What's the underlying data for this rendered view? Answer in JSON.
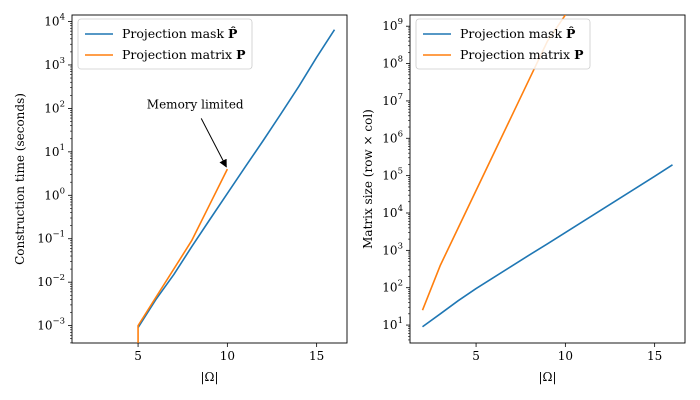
{
  "chart_data": [
    {
      "type": "line",
      "yscale": "log",
      "xlabel": "|Ω|",
      "ylabel": "Construction time (seconds)",
      "xlim": [
        1.3,
        16.7
      ],
      "ylim_log10": [
        -3.4,
        4.15
      ],
      "xticks": [
        5,
        10,
        15
      ],
      "yticks_exp": [
        -3,
        -2,
        -1,
        0,
        1,
        2,
        3,
        4
      ],
      "legend_position": "top-left",
      "grid": false,
      "series": [
        {
          "name": "Projection mask",
          "name_symbol": "P̂",
          "color": "#1f77b4",
          "x": [
            5,
            6,
            7,
            8,
            9,
            10,
            11,
            12,
            13,
            14,
            15,
            16
          ],
          "y": [
            0.0009,
            0.004,
            0.015,
            0.065,
            0.27,
            1.1,
            4.5,
            18,
            75,
            320,
            1500,
            6500
          ]
        },
        {
          "name": "Projection matrix",
          "name_symbol": "P",
          "color": "#ff7f0e",
          "x": [
            5,
            5,
            6,
            7,
            8,
            9,
            10
          ],
          "y": [
            0.0004,
            0.001,
            0.0045,
            0.02,
            0.09,
            0.6,
            4
          ]
        }
      ],
      "annotation": {
        "text": "Memory limited",
        "point": [
          10,
          4.5
        ],
        "text_at": [
          8.2,
          100
        ]
      }
    },
    {
      "type": "line",
      "yscale": "log",
      "xlabel": "|Ω|",
      "ylabel": "Matrix size (row × col)",
      "xlim": [
        1.3,
        16.7
      ],
      "ylim_log10": [
        0.52,
        9.3
      ],
      "xticks": [
        5,
        10,
        15
      ],
      "yticks_exp": [
        1,
        2,
        3,
        4,
        5,
        6,
        7,
        8,
        9
      ],
      "legend_position": "top-left",
      "grid": false,
      "series": [
        {
          "name": "Projection mask",
          "name_symbol": "P̂",
          "color": "#1f77b4",
          "x": [
            2,
            3,
            4,
            5,
            6,
            7,
            8,
            9,
            10,
            11,
            12,
            13,
            14,
            15,
            16
          ],
          "y": [
            9,
            20,
            45,
            95,
            190,
            380,
            760,
            1500,
            3000,
            6000,
            12000,
            24000,
            48000,
            96000,
            195000
          ]
        },
        {
          "name": "Projection matrix",
          "name_symbol": "P",
          "color": "#ff7f0e",
          "x": [
            2,
            3,
            4,
            5,
            6,
            7,
            8,
            9,
            10
          ],
          "y": [
            25,
            400,
            4000,
            40000,
            400000,
            4000000,
            40000000,
            400000000,
            2000000000
          ]
        }
      ]
    }
  ]
}
